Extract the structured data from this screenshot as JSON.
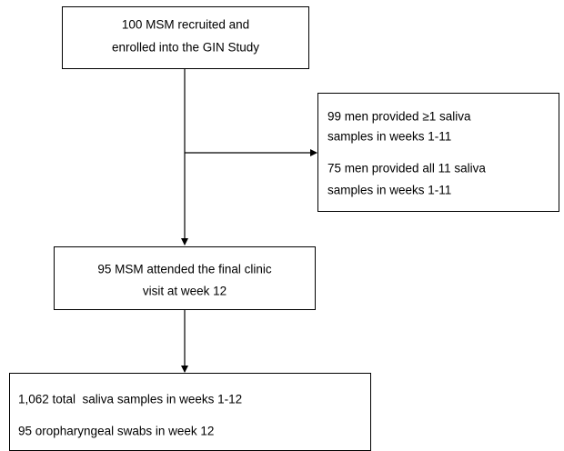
{
  "nodes": [
    {
      "lines": [
        "100 MSM recruited and",
        "enrolled into the GIN Study"
      ]
    },
    {
      "lines": [
        "99 men provided ≥1 saliva",
        "samples in weeks 1-11",
        "75 men provided all 11 saliva",
        "samples in weeks 1-11"
      ]
    },
    {
      "lines": [
        "95 MSM attended the final clinic",
        "visit at week 12"
      ]
    },
    {
      "lines": [
        "1,062 total  saliva samples in weeks 1-12",
        "95 oropharyngeal swabs in week 12"
      ]
    }
  ]
}
